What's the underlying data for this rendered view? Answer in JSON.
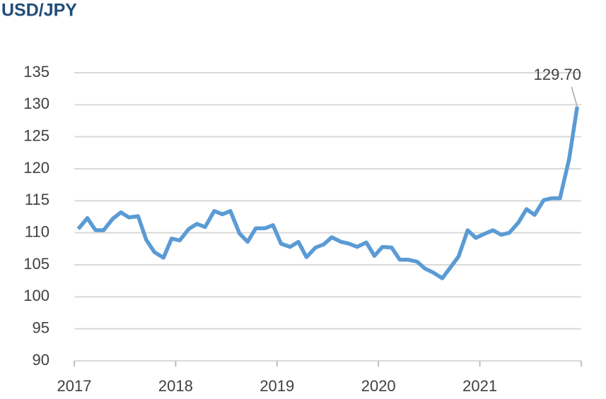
{
  "chart_data": {
    "type": "line",
    "title": "USD/JPY",
    "x": [
      2017.04,
      2017.13,
      2017.21,
      2017.29,
      2017.38,
      2017.46,
      2017.54,
      2017.63,
      2017.71,
      2017.79,
      2017.88,
      2017.96,
      2018.04,
      2018.13,
      2018.21,
      2018.29,
      2018.38,
      2018.46,
      2018.54,
      2018.63,
      2018.71,
      2018.79,
      2018.88,
      2018.96,
      2019.04,
      2019.13,
      2019.21,
      2019.29,
      2019.38,
      2019.46,
      2019.54,
      2019.63,
      2019.71,
      2019.79,
      2019.88,
      2019.96,
      2020.04,
      2020.13,
      2020.21,
      2020.29,
      2020.38,
      2020.46,
      2020.54,
      2020.63,
      2020.71,
      2020.79,
      2020.88,
      2020.96,
      2021.04,
      2021.13,
      2021.21,
      2021.29,
      2021.38,
      2021.46,
      2021.54,
      2021.63,
      2021.71,
      2021.79,
      2021.88,
      2021.96
    ],
    "series": [
      {
        "color": "#5b9bd5",
        "values": [
          110.6,
          112.3,
          110.4,
          110.4,
          112.2,
          113.2,
          112.4,
          112.6,
          108.9,
          107.0,
          106.1,
          109.1,
          108.8,
          110.6,
          111.4,
          110.9,
          113.4,
          112.9,
          113.4,
          109.9,
          108.6,
          110.7,
          110.7,
          111.2,
          108.3,
          107.8,
          108.6,
          106.2,
          107.7,
          108.2,
          109.3,
          108.6,
          108.3,
          107.8,
          108.5,
          106.4,
          107.8,
          107.7,
          105.8,
          105.8,
          105.5,
          104.4,
          103.8,
          102.9,
          104.6,
          106.3,
          110.4,
          109.2,
          109.8,
          110.4,
          109.7,
          110.0,
          111.6,
          113.7,
          112.8,
          115.1,
          115.4,
          115.4,
          121.5,
          129.7
        ]
      }
    ],
    "annotations": [
      {
        "text": "129.70",
        "x": 2021.96,
        "y": 129.7
      }
    ],
    "xlim": [
      2017,
      2022
    ],
    "xticks": [
      2017,
      2018,
      2019,
      2020,
      2021
    ],
    "ylim": [
      90,
      135
    ],
    "yticks": [
      90,
      95,
      100,
      105,
      110,
      115,
      120,
      125,
      130,
      135
    ],
    "grid": true
  }
}
